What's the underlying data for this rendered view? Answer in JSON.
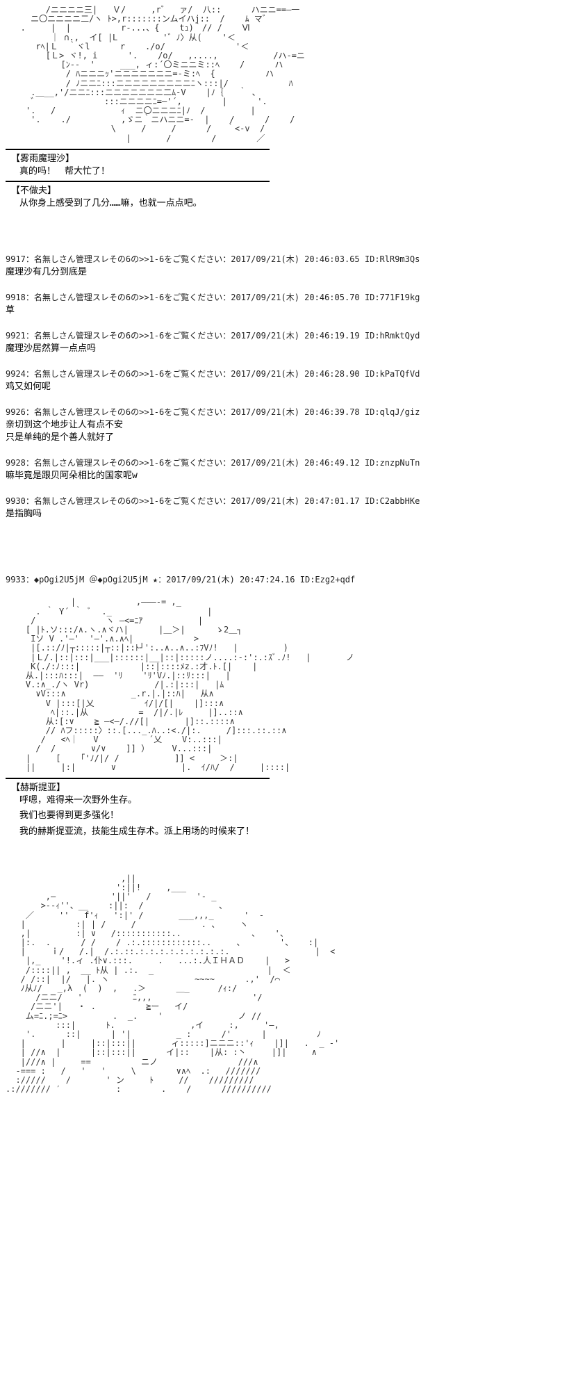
{
  "ascii_art_1": "        /ニニニニ三|   Ｖ/     ,r゛  ァ/  八::      ハニニ==―一\n     ニ〇ニニニニ二/ヽ ﾄ>,r:::::::ンムイハj::  /    ﾑ マ゛\n   .     |  |          r-...、{    tｭ)｀// /    Ⅵ\n         ｜ ∩.,  イ[ |L         '゛ﾉ〉从(    '＜\n      rﾍ|Ｌ  ｀ヾl      r    ./o/              '＜\n        [Ｌ> ヾ!, i      '.    /o/   ,....,           /ハ-=ニ\n           [ﾝ--  '     ___, ィ:´〇ミニニミ::ﾍ    /      ハ\n            / ﾊニニニｯ'ニニニニニニニ=-ミ:ﾍ  {          ハ\n            / ﾉニニﾆ:::ニニニニニニニニニﾆヽ:::|/            ﾊ\n     .＿__,'/ニニﾆ:::ニニニニニニニ二ﾑ-V    |ﾉ｛   ｀ 、\n     ゛             :::ニニニニﾆ=―'´,        |      '.\n    '.   /             ｨ  ニ〇ニニニﾆ|ﾉ  /         |\n     '.    ./          ,ゞニ｀ニハニニ=-  |    /      /    /\n                     \\     /     /      /   ｀<-v  /\n                        |       /        /        ／",
  "dialogue_blocks": [
    {
      "speaker": "【雾雨魔理沙】",
      "lines": [
        "真的吗！　帮大忙了！"
      ]
    },
    {
      "speaker": "【不做夫】",
      "lines": [
        "从你身上感受到了几分……嘛，也就一点点吧。"
      ]
    }
  ],
  "posts": [
    {
      "num": "9917",
      "name": "名無しさん管理スレその6の>>1-6をご覧ください",
      "date": "2017/09/21(木) 20:46:03.65",
      "id": "ID:RlR9m3Qs",
      "body": "魔理沙有几分到底是"
    },
    {
      "num": "9918",
      "name": "名無しさん管理スレその6の>>1-6をご覧ください",
      "date": "2017/09/21(木) 20:46:05.70",
      "id": "ID:771F19kg",
      "body": "草"
    },
    {
      "num": "9921",
      "name": "名無しさん管理スレその6の>>1-6をご覧ください",
      "date": "2017/09/21(木) 20:46:19.19",
      "id": "ID:hRmktQyd",
      "body": "魔理沙居然算一点点吗"
    },
    {
      "num": "9924",
      "name": "名無しさん管理スレその6の>>1-6をご覧ください",
      "date": "2017/09/21(木) 20:46:28.90",
      "id": "ID:kPaTQfVd",
      "body": "鸡又如何呢"
    },
    {
      "num": "9926",
      "name": "名無しさん管理スレその6の>>1-6をご覧ください",
      "date": "2017/09/21(木) 20:46:39.78",
      "id": "ID:qlqJ/giz",
      "body": "亲切到这个地步让人有点不安\n只是单纯的是个善人就好了"
    },
    {
      "num": "9928",
      "name": "名無しさん管理スレその6の>>1-6をご覧ください",
      "date": "2017/09/21(木) 20:46:49.12",
      "id": "ID:znzpNuTn",
      "body": "嘛毕竟是跟贝阿朵相比的国家呢w"
    },
    {
      "num": "9930",
      "name": "名無しさん管理スレその6の>>1-6をご覧ください",
      "date": "2017/09/21(木) 20:47:01.17",
      "id": "ID:C2abbHKe",
      "body": "是指胸吗"
    }
  ],
  "author_post": {
    "num": "9933",
    "name": "◆pOgi2U5jM ＠◆pOgi2U5jM ★",
    "date": "2017/09/21(木) 20:47:24.16",
    "id": "ID:Ezg2+qdf"
  },
  "ascii_art_2": "             |            ,―――-= ,_\n      . ｀ Y´ ｀ ﾞ  ._                   |\n     /              ヽ ―<=ﾆｱ           |\n    [ |ﾄ.ソ:::/∧.ヽ.∧ヾハ|      |＿＞|      ゝ2＿┐\n     Iソ V .'―'  '―'.∧.∧ﾍ|            >\n     |[.::/ﾉ|┬:::::|┬::|::ﾄ┘':..∧..∧..:ﾌVﾉ!   |         )\n     |Ｌ/.|::|:::|___|::::::|__|::|:::::ノ....:-:':.:ｽﾞ.ﾉ!   |       ノ\n     K(./:ﾉ:::|            |::|::::ﾒz.:才.ﾄ.[|    |\n    从.|:::ﾊ:::|  ――  'ﾘ    'ﾘ'Vﾉ.|::ﾘ:::|   |\n    V.:∧_./ヽ Vr)             /|.:|:::|   |ﾑ\n      ∨V:::∧             _.r.|.|::ﾊ|   从∧\n        V |:::[|乂          ｲ/|/[|    |]:::∧\n         ﾍ|::.|从          =  /|/.|ﾚ     |]..::∧\n        从:[:∨    ≧ ―<―/.//[|       |]::.::::∧\n        // ﾊフ:::::〉::.[..._.ﾊ..:<./|:.     /]:::.::.::∧\n       /   <ﾍ｜   V          ´乂    V:..:::|\n      /  /       ∨/∨    ]] ）　　  V...:::|\n    |     [    ｢'ﾉ/|/ /           ]] <　　　＞:|\n    ||     |:|       ∨             |.  ｲ/ﾊ/  /　　　|::::|",
  "dialogue_blocks_2": [
    {
      "speaker": "【赫斯提亚】",
      "lines": [
        "呼嗯，难得来一次野外生存。",
        "我们也要得到更多强化！",
        "我的赫斯提亚流，技能生成生存术。派上用场的时候来了！"
      ]
    }
  ],
  "ascii_art_3": "                       ,||\n                      ':||!     ,___\n        ,―           '||'   /         '- _\n       >--ｨ''、__    :||:  /               、\n    ／     ''   f'ｨ   ':|' /       ___,,,_      '  -\n   |          :| | /     /             . 、    ヽ\n   ,|         :| ∨   /:::::::::::..              、   '、\n   |:.  .      / /    / .:.::::::::::::..     、       '、   :|\n   |     ｉ/   /.|  /.:.::.:.:.:.:.:.:.:.:.:.                 |  <\n    |,_    '!.ィ .仆∨.:::.     .   ...:.人ＩＨＡＤ    |   >\n    /::::|| ,  __ ﾄ从 | .:.  _                     　|  ＜\n   / /::|  |/   |. ヽ                 ~~~~      .,'  /⌒\n   ﾉ从ﾉ/   _,λ  (  )  ,   .＞      ＿_   　 /ｨ:/\n      /ニニ/   '          ﾆ,,,                    '/\n     /ニニ'|   ・ .          ≧ー   イ/\n    ム=ﾆ.;=ﾆ>         .  _.    '               ノ //\n          :::|      ﾄ.               ,イ     :,     '―,\n    '.      ::|      | '|         _ :      /'      |          ﾉ\n   |       |     |::|:::||       ィ:::::]ニニニ::'ｨ    |]|   .  _ -'\n   | //∧  |      |::|:::||      イ|::    |从: :丶     |]|     ∧\n   |///∧ |     ==          ニノ                ///∧\n  -=== :   /   '   '     \\        ∨∧ﾍ  .:   ///////\n  ://///    /       ' ン     ﾄ     //    /////////\n.://///// ′           :        .    /      //////////"
}
